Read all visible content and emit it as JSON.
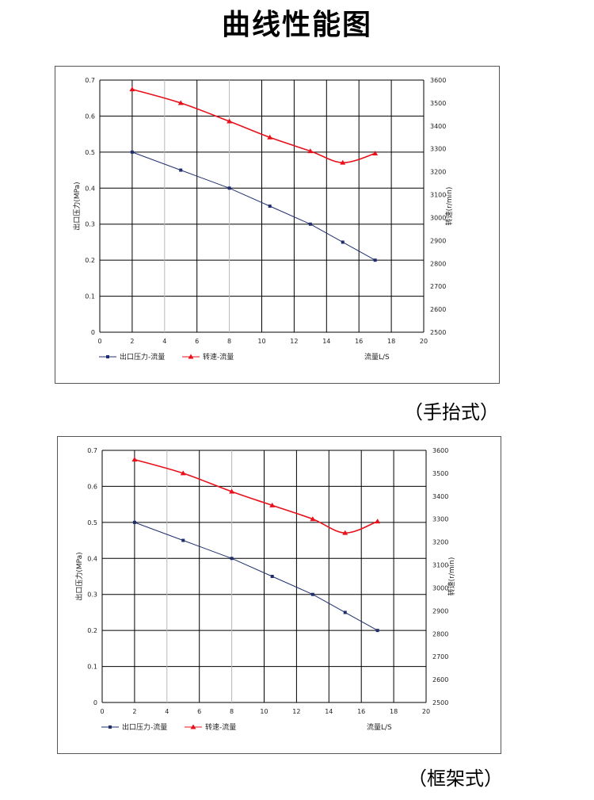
{
  "page": {
    "title": "曲线性能图"
  },
  "captions": [
    "（手抬式）",
    "（框架式）"
  ],
  "chart_data": [
    {
      "type": "line",
      "caption": "（手抬式）",
      "xlabel": "流量L/S",
      "ylabel": "出口压力(MPa)",
      "y2label": "转速(r/min)",
      "xlim": [
        0,
        20
      ],
      "ylim": [
        0,
        0.7
      ],
      "y2lim": [
        2500,
        3600
      ],
      "xticks": [
        "0",
        "2",
        "4",
        "6",
        "8",
        "10",
        "12",
        "14",
        "16",
        "18",
        "20"
      ],
      "yticks": [
        "0",
        "0.1",
        "0.2",
        "0.3",
        "0.4",
        "0.5",
        "0.6",
        "0.7"
      ],
      "y2ticks": [
        "2500",
        "2600",
        "2700",
        "2800",
        "2900",
        "3000",
        "3100",
        "3200",
        "3300",
        "3400",
        "3500",
        "3600"
      ],
      "grid": true,
      "legend": "bottom-left",
      "series": [
        {
          "name": "出口压力-流量",
          "axis": "left",
          "color": "#1f2f6e",
          "marker": "square",
          "x": [
            2,
            5,
            8,
            10.5,
            13,
            15,
            17
          ],
          "y": [
            0.5,
            0.45,
            0.4,
            0.35,
            0.3,
            0.25,
            0.2
          ]
        },
        {
          "name": "转速-流量",
          "axis": "right",
          "color": "#e8101a",
          "marker": "triangle",
          "x": [
            2,
            5,
            8,
            10.5,
            13,
            15,
            17
          ],
          "y": [
            3560,
            3500,
            3420,
            3350,
            3290,
            3240,
            3280
          ]
        }
      ]
    },
    {
      "type": "line",
      "caption": "（框架式）",
      "xlabel": "流量L/S",
      "ylabel": "出口压力(MPa)",
      "y2label": "转速(r/min)",
      "xlim": [
        0,
        20
      ],
      "ylim": [
        0,
        0.7
      ],
      "y2lim": [
        2500,
        3600
      ],
      "xticks": [
        "0",
        "2",
        "4",
        "6",
        "8",
        "10",
        "12",
        "14",
        "16",
        "18",
        "20"
      ],
      "yticks": [
        "0",
        "0.1",
        "0.2",
        "0.3",
        "0.4",
        "0.5",
        "0.6",
        "0.7"
      ],
      "y2ticks": [
        "2500",
        "2600",
        "2700",
        "2800",
        "2900",
        "3000",
        "3100",
        "3200",
        "3300",
        "3400",
        "3500",
        "3600"
      ],
      "grid": true,
      "legend": "bottom-left",
      "series": [
        {
          "name": "出口压力-流量",
          "axis": "left",
          "color": "#1f2f6e",
          "marker": "square",
          "x": [
            2,
            5,
            8,
            10.5,
            13,
            15,
            17
          ],
          "y": [
            0.5,
            0.45,
            0.4,
            0.35,
            0.3,
            0.25,
            0.2
          ]
        },
        {
          "name": "转速-流量",
          "axis": "right",
          "color": "#e8101a",
          "marker": "triangle",
          "x": [
            2,
            5,
            8,
            10.5,
            13,
            15,
            17
          ],
          "y": [
            3560,
            3500,
            3420,
            3360,
            3300,
            3240,
            3290
          ]
        }
      ]
    }
  ]
}
